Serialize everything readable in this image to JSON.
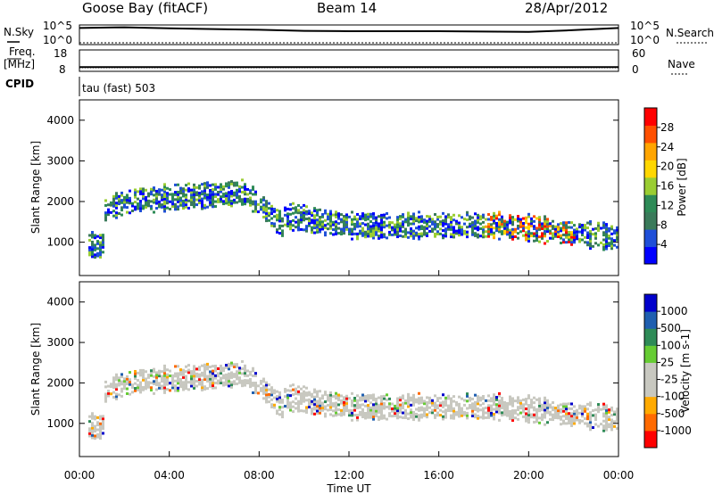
{
  "header": {
    "station": "Goose Bay (fitACF)",
    "beam": "Beam 14",
    "date": "28/Apr/2012"
  },
  "left_labels": {
    "nsky": "N.Sky",
    "freq": "Freq.",
    "mhz": "[MHz]",
    "cpid": "CPID"
  },
  "right_labels": {
    "nsearch": "N.Search",
    "nave": "Nave"
  },
  "cpid_text": "tau (fast) 503",
  "colors": {
    "power": [
      "#0000ff",
      "#1f4fd8",
      "#3a7a5a",
      "#2e8b57",
      "#9acd32",
      "#ffd700",
      "#ffa500",
      "#ff5000",
      "#ff0000"
    ],
    "velocity": [
      "#ff0000",
      "#ff6a00",
      "#ffaa00",
      "#c8c8c0",
      "#c8c8c0",
      "#66cc33",
      "#2e8b57",
      "#1f5fb0",
      "#0000cc"
    ]
  },
  "chart_data": [
    {
      "type": "line",
      "x": [
        "00:00",
        "02:00",
        "04:00",
        "06:00",
        "08:00",
        "10:00",
        "12:00",
        "14:00",
        "16:00",
        "18:00",
        "20:00",
        "22:00",
        "24:00"
      ],
      "series": [
        {
          "name": "N.Sky",
          "values": [
            4.4,
            4.6,
            4.3,
            4.1,
            3.9,
            3.6,
            3.5,
            3.5,
            3.5,
            3.4,
            3.3,
            3.8,
            4.4
          ]
        }
      ],
      "y_tick_labels": [
        "10^5",
        "10^0"
      ]
    },
    {
      "type": "line",
      "x": [
        "00:00",
        "24:00"
      ],
      "series": [
        {
          "name": "Freq.",
          "values": [
            10,
            10
          ]
        }
      ],
      "y_tick_labels_left": [
        "18",
        "8"
      ],
      "y_tick_labels_right": [
        "60",
        "0"
      ]
    },
    {
      "type": "heatmap",
      "ylabel": "Slant Range [km]",
      "colorbar_label": "Power [dB]",
      "colorbar_ticks": [
        "28",
        "24",
        "20",
        "16",
        "12",
        "8",
        "4"
      ],
      "ylim": [
        180,
        4500
      ],
      "y_ticks": [
        "1000",
        "2000",
        "3000",
        "4000"
      ],
      "x_ticks": [
        "00:00",
        "04:00",
        "08:00",
        "12:00",
        "16:00",
        "20:00",
        "00:00"
      ]
    },
    {
      "type": "heatmap",
      "ylabel": "Slant Range [km]",
      "xlabel": "Time UT",
      "colorbar_label": "Velocity [m s-1]",
      "colorbar_ticks": [
        "1000",
        "500",
        "100",
        "25",
        "-25",
        "-100",
        "-500",
        "-1000"
      ],
      "ylim": [
        180,
        4500
      ],
      "y_ticks": [
        "1000",
        "2000",
        "3000",
        "4000"
      ],
      "x_ticks": [
        "00:00",
        "04:00",
        "08:00",
        "12:00",
        "16:00",
        "20:00",
        "00:00"
      ]
    }
  ]
}
